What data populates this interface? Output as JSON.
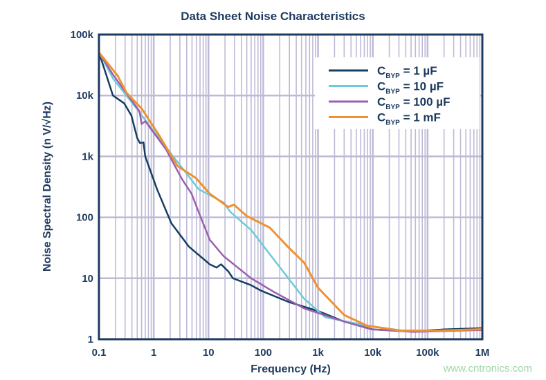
{
  "chart_data": {
    "type": "line",
    "title": "Data Sheet Noise Characteristics",
    "xlabel": "Frequency (Hz)",
    "ylabel": "Noise Spectral Density (n V/√Hz)",
    "xscale": "log",
    "yscale": "log",
    "xlim": [
      0.1,
      1000000
    ],
    "ylim": [
      1,
      100000
    ],
    "xticks": [
      0.1,
      1,
      10,
      100,
      1000,
      10000,
      100000,
      1000000
    ],
    "xtick_labels": [
      "0.1",
      "1",
      "10",
      "100",
      "1k",
      "10k",
      "100k",
      "1M"
    ],
    "yticks": [
      100000,
      10000,
      1000,
      100,
      10,
      1
    ],
    "ytick_labels": [
      "100k",
      "10k",
      "1k",
      "100",
      "10",
      "1"
    ],
    "grid": true,
    "legend_position": "top-right",
    "series": [
      {
        "name": "C_BYP = 1 µF",
        "legend": {
          "main": "C",
          "sub": "BYP",
          "rest": " = 1 µF"
        },
        "color": "#163e63",
        "x": [
          0.1,
          0.18,
          0.29,
          0.39,
          0.5,
          0.56,
          0.65,
          0.7,
          1.15,
          2.1,
          4.4,
          10.5,
          14,
          17,
          23,
          28,
          60,
          90,
          290,
          1000,
          3000,
          10000,
          50000,
          200000,
          1000000
        ],
        "y": [
          51000,
          10000,
          7400,
          4700,
          2000,
          1660,
          1700,
          1000,
          290,
          80,
          33,
          17,
          15,
          17,
          13,
          10,
          7.7,
          6.3,
          4.1,
          2.9,
          1.95,
          1.45,
          1.34,
          1.45,
          1.52
        ]
      },
      {
        "name": "C_BYP = 10 µF",
        "legend": {
          "main": "C",
          "sub": "BYP",
          "rest": " = 10 µF"
        },
        "color": "#6ccbd9",
        "x": [
          0.1,
          0.12,
          0.18,
          0.48,
          1.68,
          3.3,
          6.6,
          19,
          25,
          60,
          162,
          318,
          560,
          1350,
          7800,
          33000,
          144000,
          1000000
        ],
        "y": [
          51000,
          38000,
          19000,
          6200,
          1400,
          650,
          290,
          175,
          123,
          62,
          19.5,
          8.9,
          4.6,
          2.3,
          1.67,
          1.4,
          1.38,
          1.46
        ]
      },
      {
        "name": "C_BYP = 100 µF",
        "legend": {
          "main": "C",
          "sub": "BYP",
          "rest": " = 100 µF"
        },
        "color": "#9b5fb0",
        "x": [
          0.1,
          0.18,
          0.55,
          0.6,
          0.7,
          1.68,
          3.3,
          4.9,
          6.6,
          10.5,
          19,
          60,
          160,
          560,
          3000,
          9500,
          55000,
          1000000
        ],
        "y": [
          51000,
          22000,
          5500,
          3400,
          3800,
          1300,
          420,
          245,
          123,
          43,
          23,
          10,
          5.9,
          3.2,
          1.95,
          1.45,
          1.32,
          1.42
        ]
      },
      {
        "name": "C_BYP = 1 mF",
        "legend": {
          "main": "C",
          "sub": "BYP",
          "rest": " = 1 mF"
        },
        "color": "#f0912f",
        "x": [
          0.1,
          0.22,
          0.32,
          0.61,
          1.26,
          2.7,
          5.9,
          10.5,
          23,
          29,
          50,
          131,
          290,
          560,
          1000,
          3000,
          7800,
          33000,
          144000,
          1000000
        ],
        "y": [
          51000,
          21000,
          11000,
          6000,
          2200,
          700,
          440,
          245,
          148,
          162,
          105,
          68,
          32,
          18,
          7,
          2.5,
          1.67,
          1.38,
          1.38,
          1.46
        ]
      }
    ]
  },
  "watermark": "www.cntronics.com"
}
